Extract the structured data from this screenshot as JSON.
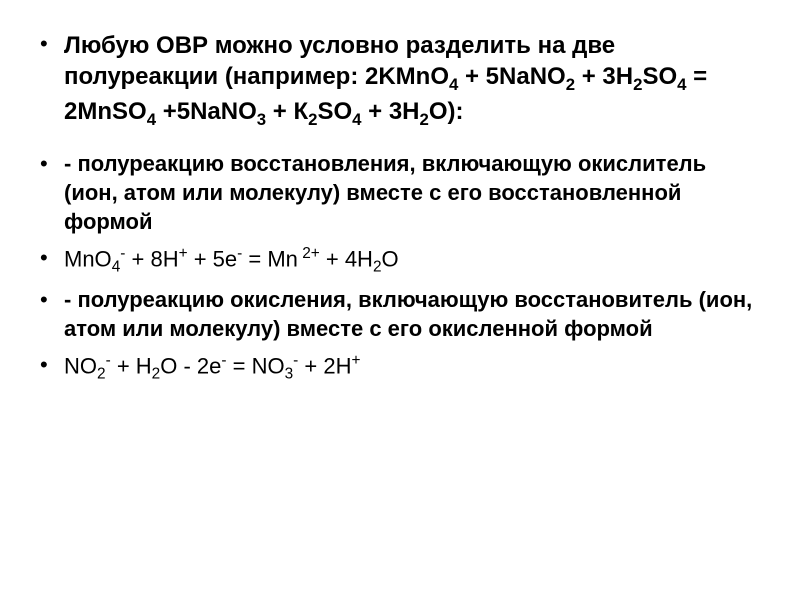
{
  "slide": {
    "bullet_char": "•",
    "background_color": "#ffffff",
    "text_color": "#000000",
    "items": [
      {
        "text_html": "Любую ОВР можно условно разделить на две полуреакции  (например: 2KMnO<sub>4</sub> + 5NaNO<sub>2</sub> + 3H<sub>2</sub>SO<sub>4</sub> = 2MnSO<sub>4</sub> +5NaNO<sub>3</sub> + К<sub>2</sub>SO<sub>4</sub> + 3H<sub>2</sub>O):",
        "bold": true,
        "main": true
      },
      {
        "text_html": "- полуреакцию восстановления, включающую окислитель (ион, атом или молекулу) вместе с его восстановленной формой",
        "bold": true,
        "main": false,
        "spacer_before": true
      },
      {
        "text_html": "MnO<sub>4</sub><sup>-</sup> + 8H<sup>+</sup>  + 5e<sup>-</sup>  =   Mn<sup> 2+</sup> + 4H<sub>2</sub>O",
        "bold": false,
        "main": false
      },
      {
        "text_html": "- полуреакцию окисления, включающую восстановитель (ион, атом или молекулу) вместе с его окисленной формой",
        "bold": true,
        "main": false
      },
      {
        "text_html": "NO<sub>2</sub><sup>-</sup>   + H<sub>2</sub>O  -  2e<sup>-</sup>  =   NO<sub>3</sub><sup>-</sup>   +  2H<sup>+</sup>",
        "bold": false,
        "main": false
      }
    ]
  }
}
